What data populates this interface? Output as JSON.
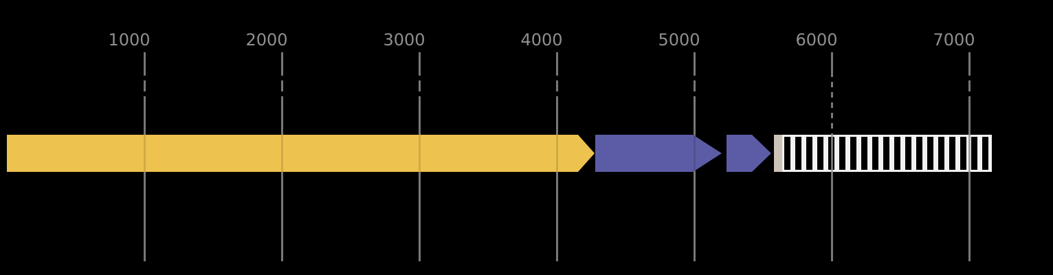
{
  "figure": {
    "name": "linear-genome-feature-map",
    "background_color": "#000000",
    "axis": {
      "tick_label_color": "#8f8f8f",
      "gridline_color": "#787878",
      "tick_labels": [
        "1000",
        "2000",
        "3000",
        "4000",
        "5000",
        "6000",
        "7000"
      ],
      "tick_values": [
        1000,
        2000,
        3000,
        4000,
        5000,
        6000,
        7000
      ]
    }
  },
  "chart_data": {
    "type": "bar",
    "subtype": "genome-feature-intervals",
    "orientation": "horizontal",
    "title": "",
    "xlabel": "",
    "ylabel": "",
    "xlim": [
      -50,
      7600
    ],
    "x_ticks": [
      1000,
      2000,
      3000,
      4000,
      5000,
      6000,
      7000
    ],
    "grid": "vertical-lines",
    "legend": "none",
    "features": [
      {
        "name": "feature-arrow-1",
        "shape": "arrow",
        "direction": "right",
        "start": 0,
        "end": 4275,
        "head_start": 4155,
        "color": "#EDC24F"
      },
      {
        "name": "feature-arrow-2",
        "shape": "arrow",
        "direction": "right",
        "start": 4280,
        "end": 5200,
        "head_start": 4990,
        "color": "#5C5CA6"
      },
      {
        "name": "feature-arrow-3",
        "shape": "arrow",
        "direction": "right",
        "start": 5235,
        "end": 5560,
        "head_start": 5420,
        "color": "#5C5CA6"
      },
      {
        "name": "feature-spacer-block",
        "shape": "rect",
        "start": 5580,
        "end": 5640,
        "color": "#CEC3B8"
      },
      {
        "name": "feature-hatched-region",
        "shape": "hatched-rect",
        "start": 5640,
        "end": 7165,
        "fill": "#000000",
        "hatch": "vertical-bars",
        "hatch_color": "#F2F2F2",
        "border_color": "#F2F2F2"
      }
    ]
  }
}
